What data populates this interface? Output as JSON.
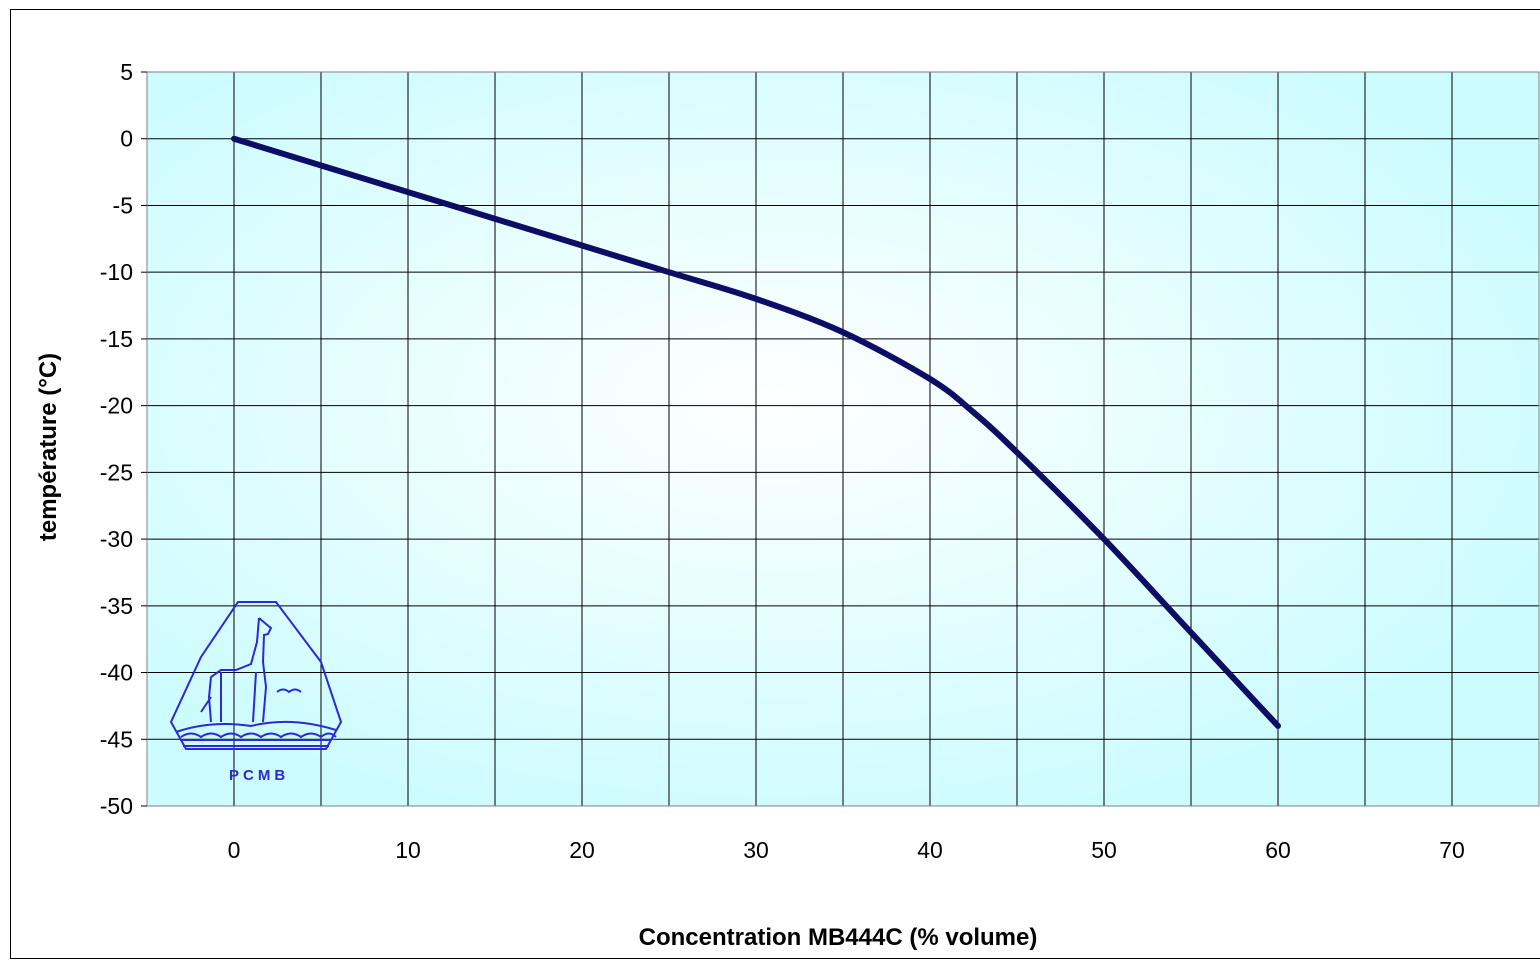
{
  "chart_data": {
    "type": "line",
    "title": "",
    "xlabel": "Concentration MB444C (% volume)",
    "ylabel": "température (°C)",
    "xlim": [
      -5,
      75
    ],
    "ylim": [
      -50,
      5
    ],
    "x_ticks": [
      "0",
      "10",
      "20",
      "30",
      "40",
      "50",
      "60",
      "70"
    ],
    "y_ticks": [
      "5",
      "0",
      "-5",
      "-10",
      "-15",
      "-20",
      "-25",
      "-30",
      "-35",
      "-40",
      "-45",
      "-50"
    ],
    "grid": true,
    "legend": "none",
    "series": [
      {
        "color": "#0d0d66",
        "x": [
          0,
          10,
          20,
          25,
          30,
          35,
          40,
          42.5,
          45,
          50,
          55,
          60
        ],
        "y": [
          0,
          -4,
          -8,
          -10,
          -12,
          -14.5,
          -18,
          -20.5,
          -23.5,
          -30,
          -37,
          -44
        ]
      }
    ],
    "plot_background": "#ccfcff",
    "logo_text": "PCMB"
  }
}
